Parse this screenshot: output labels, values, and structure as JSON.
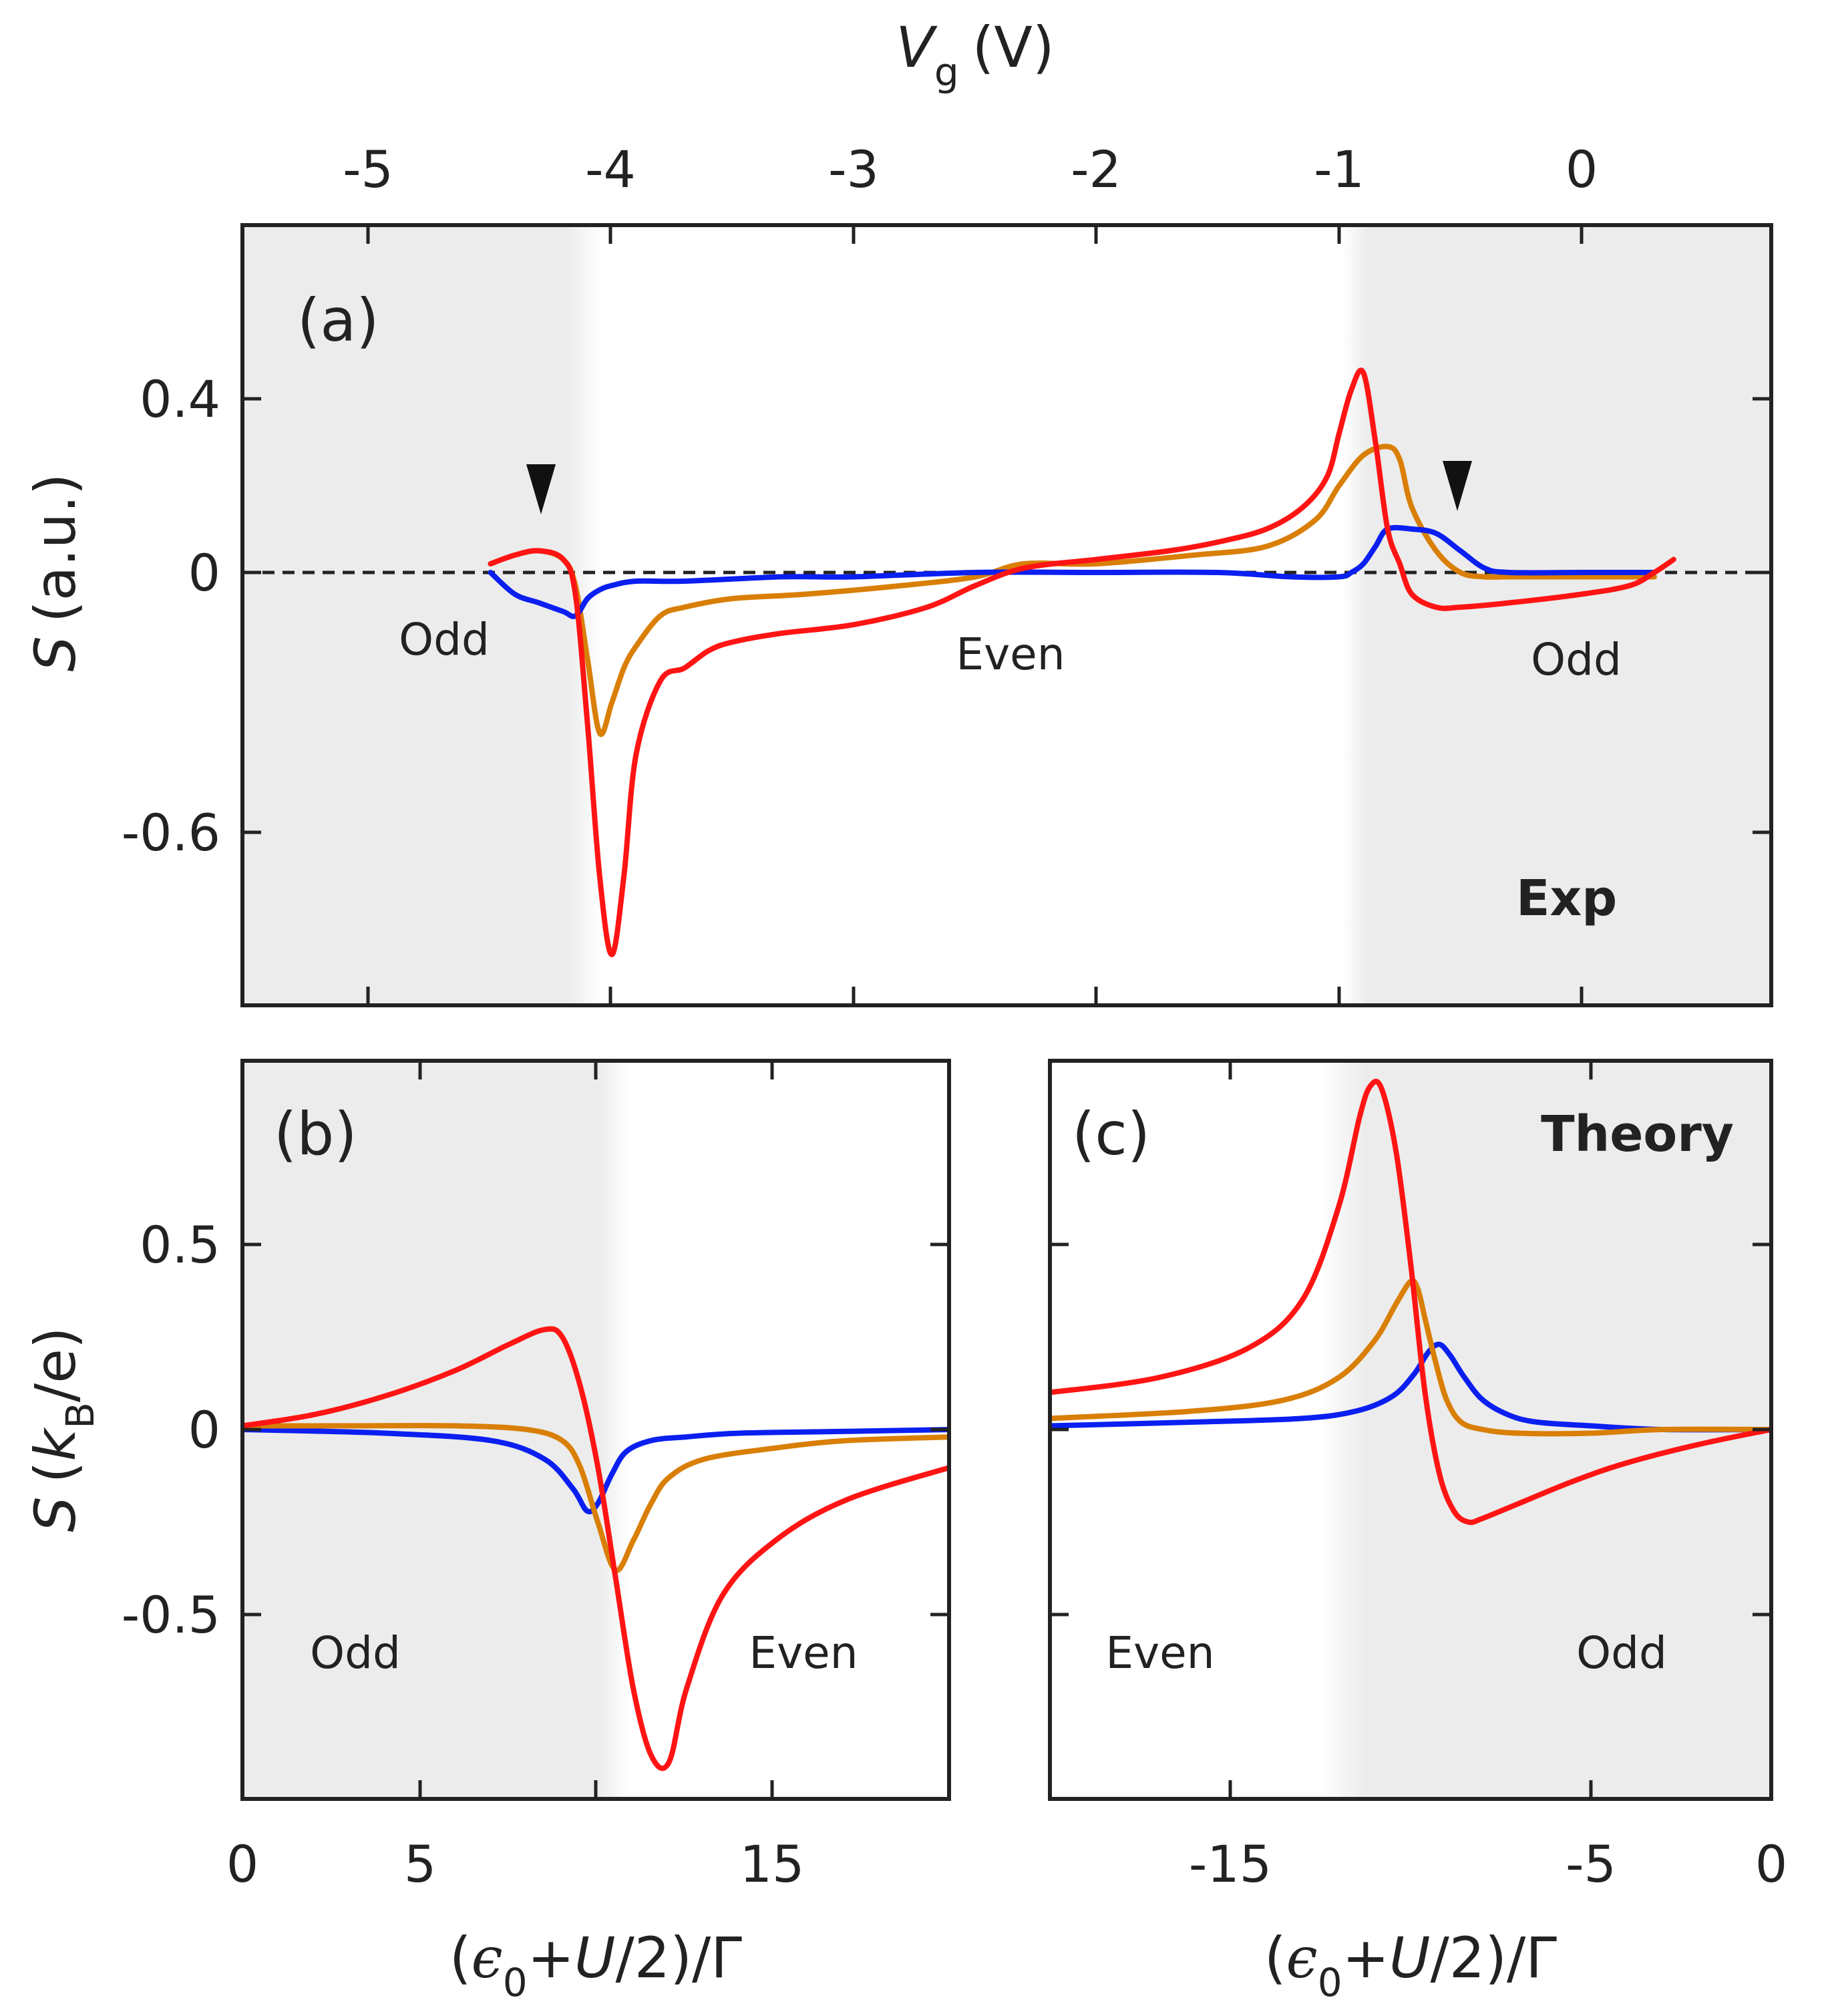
{
  "colors": {
    "red": "#ff1414",
    "orange": "#d97f06",
    "blue": "#0a1ff0",
    "shade": "#ececec",
    "axis": "#222222"
  },
  "chart_data": [
    {
      "id": "a",
      "type": "line",
      "panel_label": "(a)",
      "mode_label": "Exp",
      "xlabel_var": "V",
      "xlabel_sub": "g",
      "xlabel_unit": "(V)",
      "ylabel_var": "S",
      "ylabel_unit": "(a.u.)",
      "xlim": [
        -5.5,
        0.8
      ],
      "ylim": [
        -1.0,
        0.8
      ],
      "xticks": [
        -5,
        -4,
        -3,
        -2,
        -1,
        0
      ],
      "xtick_labels": [
        "-5",
        "-4",
        "-3",
        "-2",
        "-1",
        "0"
      ],
      "yticks": [
        0.4,
        0,
        -0.6
      ],
      "ytick_labels": [
        "0.4",
        "0",
        "-0.6"
      ],
      "shaded_regions": [
        [
          -5.5,
          -4.05
        ],
        [
          -0.95,
          0.8
        ]
      ],
      "zero_line": "dashed",
      "region_labels": [
        "Odd",
        "Even",
        "Odd"
      ],
      "markers": [
        [
          -4.3,
          "arrowhead"
        ],
        [
          -0.52,
          "arrowhead"
        ]
      ],
      "series": [
        {
          "name": "red",
          "color": "red",
          "x": [
            -4.5,
            -4.4,
            -4.3,
            -4.2,
            -4.15,
            -4.1,
            -4.05,
            -4.0,
            -3.95,
            -3.9,
            -3.8,
            -3.7,
            -3.6,
            -3.5,
            -3.3,
            -3.0,
            -2.7,
            -2.5,
            -2.3,
            -2.0,
            -1.7,
            -1.5,
            -1.3,
            -1.15,
            -1.05,
            -1.0,
            -0.95,
            -0.9,
            -0.85,
            -0.8,
            -0.75,
            -0.7,
            -0.6,
            -0.5,
            -0.3,
            0.0,
            0.2,
            0.3,
            0.38
          ],
          "y": [
            0.02,
            0.04,
            0.05,
            0.03,
            -0.05,
            -0.35,
            -0.7,
            -0.88,
            -0.7,
            -0.42,
            -0.25,
            -0.22,
            -0.18,
            -0.16,
            -0.14,
            -0.12,
            -0.08,
            -0.03,
            0.01,
            0.03,
            0.05,
            0.07,
            0.1,
            0.15,
            0.22,
            0.32,
            0.42,
            0.46,
            0.3,
            0.1,
            0.02,
            -0.05,
            -0.08,
            -0.08,
            -0.07,
            -0.05,
            -0.03,
            0.0,
            0.03
          ]
        },
        {
          "name": "orange",
          "color": "orange",
          "x": [
            -4.5,
            -4.4,
            -4.3,
            -4.2,
            -4.15,
            -4.1,
            -4.05,
            -4.0,
            -3.95,
            -3.9,
            -3.8,
            -3.7,
            -3.5,
            -3.2,
            -2.8,
            -2.5,
            -2.3,
            -2.0,
            -1.6,
            -1.3,
            -1.1,
            -1.0,
            -0.9,
            -0.8,
            -0.75,
            -0.7,
            -0.6,
            -0.5,
            -0.4,
            -0.3,
            0.0,
            0.3
          ],
          "y": [
            0.02,
            0.04,
            0.05,
            0.03,
            -0.03,
            -0.2,
            -0.37,
            -0.3,
            -0.22,
            -0.17,
            -0.1,
            -0.08,
            -0.06,
            -0.05,
            -0.03,
            -0.01,
            0.02,
            0.02,
            0.04,
            0.06,
            0.12,
            0.2,
            0.27,
            0.29,
            0.26,
            0.15,
            0.05,
            0.0,
            -0.01,
            -0.01,
            -0.01,
            -0.01
          ]
        },
        {
          "name": "blue",
          "color": "blue",
          "x": [
            -4.5,
            -4.4,
            -4.3,
            -4.2,
            -4.15,
            -4.1,
            -4.05,
            -4.0,
            -3.9,
            -3.7,
            -3.3,
            -3.0,
            -2.5,
            -2.0,
            -1.5,
            -1.2,
            -1.0,
            -0.95,
            -0.9,
            -0.85,
            -0.8,
            -0.7,
            -0.6,
            -0.5,
            -0.4,
            -0.3,
            0.0,
            0.3
          ],
          "y": [
            0.0,
            -0.05,
            -0.07,
            -0.09,
            -0.1,
            -0.06,
            -0.04,
            -0.03,
            -0.02,
            -0.02,
            -0.01,
            -0.01,
            0.0,
            0.0,
            0.0,
            -0.01,
            -0.01,
            0.0,
            0.02,
            0.06,
            0.1,
            0.1,
            0.09,
            0.05,
            0.01,
            0.0,
            0.0,
            0.0
          ]
        }
      ]
    },
    {
      "id": "b",
      "type": "line",
      "panel_label": "(b)",
      "xlabel": "(ϵ₀+U/2)/Γ",
      "xlabel_pre": "(",
      "xlabel_eps": "ϵ",
      "xlabel_sub": "0",
      "xlabel_mid": "+",
      "xlabel_u": "U",
      "xlabel_post": "/2)/Γ",
      "ylabel_var": "S",
      "ylabel_pre": "(",
      "ylabel_k": "k",
      "ylabel_sub": "B",
      "ylabel_post": "/e)",
      "xlim": [
        0,
        20
      ],
      "ylim": [
        -1.0,
        1.0
      ],
      "xticks": [
        0,
        5,
        15
      ],
      "xtick_labels": [
        "0",
        "5",
        "15"
      ],
      "yticks": [
        0.5,
        0,
        -0.5
      ],
      "ytick_labels": [
        "0.5",
        "0",
        "-0.5"
      ],
      "shaded_regions": [
        [
          0,
          10.7
        ]
      ],
      "region_labels": [
        "Odd",
        "Even"
      ],
      "series": [
        {
          "name": "red",
          "color": "red",
          "x": [
            0,
            2,
            4,
            6,
            7.5,
            8.5,
            9.0,
            9.5,
            10.0,
            10.5,
            11.0,
            11.5,
            12.0,
            12.5,
            13.5,
            15,
            17,
            20
          ],
          "y": [
            0.01,
            0.04,
            0.09,
            0.16,
            0.23,
            0.27,
            0.25,
            0.12,
            -0.1,
            -0.4,
            -0.7,
            -0.88,
            -0.9,
            -0.7,
            -0.45,
            -0.3,
            -0.19,
            -0.1
          ]
        },
        {
          "name": "orange",
          "color": "orange",
          "x": [
            0,
            3,
            6,
            8.0,
            9.0,
            9.5,
            10.0,
            10.5,
            11.0,
            11.5,
            12,
            13,
            15,
            17,
            20
          ],
          "y": [
            0.01,
            0.01,
            0.01,
            0.0,
            -0.03,
            -0.1,
            -0.25,
            -0.38,
            -0.3,
            -0.2,
            -0.13,
            -0.08,
            -0.05,
            -0.03,
            -0.02
          ]
        },
        {
          "name": "blue",
          "color": "blue",
          "x": [
            0,
            4,
            7,
            8.5,
            9.3,
            9.7,
            10.0,
            10.4,
            10.8,
            11.5,
            12.5,
            14,
            17,
            20
          ],
          "y": [
            0.0,
            -0.01,
            -0.03,
            -0.08,
            -0.16,
            -0.22,
            -0.2,
            -0.12,
            -0.06,
            -0.03,
            -0.02,
            -0.01,
            -0.005,
            0.0
          ]
        }
      ]
    },
    {
      "id": "c",
      "type": "line",
      "panel_label": "(c)",
      "mode_label": "Theory",
      "xlabel": "(ϵ₀+U/2)/Γ",
      "xlabel_pre": "(",
      "xlabel_eps": "ϵ",
      "xlabel_sub": "0",
      "xlabel_mid": "+",
      "xlabel_u": "U",
      "xlabel_post": "/2)/Γ",
      "xlim": [
        -20,
        0
      ],
      "ylim": [
        -1.0,
        1.0
      ],
      "xticks": [
        -15,
        -5,
        0
      ],
      "xtick_labels": [
        "-15",
        "-5",
        "0"
      ],
      "yticks": [
        0.5,
        0,
        -0.5
      ],
      "shaded_regions": [
        [
          -12.3,
          0
        ]
      ],
      "region_labels": [
        "Even",
        "Odd"
      ],
      "series": [
        {
          "name": "red",
          "color": "red",
          "x": [
            -20,
            -17,
            -14.5,
            -13.0,
            -12.0,
            -11.4,
            -11.1,
            -10.8,
            -10.4,
            -10.0,
            -9.6,
            -9.2,
            -8.8,
            -8.4,
            -8.0,
            -7.0,
            -5.5,
            -4.0,
            -2.0,
            0
          ],
          "y": [
            0.1,
            0.14,
            0.22,
            0.35,
            0.6,
            0.85,
            0.93,
            0.92,
            0.75,
            0.45,
            0.1,
            -0.12,
            -0.22,
            -0.25,
            -0.24,
            -0.2,
            -0.14,
            -0.09,
            -0.04,
            0.0
          ]
        },
        {
          "name": "orange",
          "color": "orange",
          "x": [
            -20,
            -16,
            -13.5,
            -12.0,
            -11.0,
            -10.4,
            -10.0,
            -9.8,
            -9.6,
            -9.3,
            -9.0,
            -8.6,
            -8.0,
            -7.0,
            -5.0,
            -3.0,
            0
          ],
          "y": [
            0.03,
            0.05,
            0.08,
            0.14,
            0.24,
            0.34,
            0.4,
            0.38,
            0.3,
            0.18,
            0.08,
            0.02,
            0.0,
            -0.01,
            -0.01,
            0.0,
            0.0
          ]
        },
        {
          "name": "blue",
          "color": "blue",
          "x": [
            -20,
            -16,
            -13,
            -11.5,
            -10.5,
            -9.9,
            -9.5,
            -9.2,
            -8.9,
            -8.5,
            -8.0,
            -7.3,
            -6.5,
            -5.0,
            -3.0,
            0
          ],
          "y": [
            0.01,
            0.02,
            0.03,
            0.05,
            0.09,
            0.15,
            0.21,
            0.23,
            0.2,
            0.14,
            0.08,
            0.04,
            0.02,
            0.01,
            0.0,
            0.0
          ]
        }
      ]
    }
  ]
}
